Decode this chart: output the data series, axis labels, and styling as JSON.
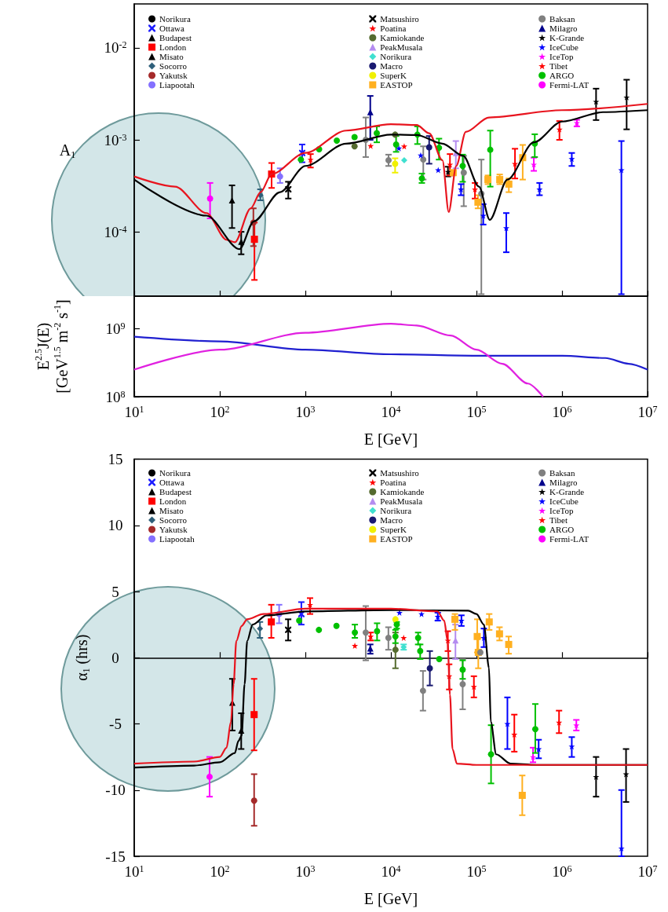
{
  "chart_data": [
    {
      "type": "scatter",
      "ylabel": "A$_{1}$",
      "log": "xy",
      "legend": "top",
      "tick_labels": "y",
      "xlim": [
        10,
        10000000
      ],
      "xticks": [
        {
          "value": 10,
          "label": null
        },
        {
          "value": 100,
          "label": null
        },
        {
          "value": 1000,
          "label": null
        },
        {
          "value": 10000,
          "label": null
        },
        {
          "value": 100000,
          "label": null
        },
        {
          "value": 1000000,
          "label": null
        },
        {
          "value": 10000000,
          "label": null
        }
      ],
      "ylim": [
        2e-05,
        0.03
      ],
      "yticks": [
        {
          "value": 0.0001,
          "label": "10$^{-4}$"
        },
        {
          "value": 0.001,
          "label": "10$^{-3}$"
        },
        {
          "value": 0.01,
          "label": "10$^{-2}$"
        }
      ],
      "series": [
        {
          "name": "Norikura",
          "color": "#000000",
          "marker": "circle"
        },
        {
          "name": "Ottawa",
          "color": "#1a1aff",
          "marker": "cross",
          "x": [
            918
          ],
          "values": [
            0.00072
          ],
          "errors": [
            [
              0.00057,
              0.00089
            ]
          ]
        },
        {
          "name": "Budapest",
          "color": "#000000",
          "marker": "triangle",
          "x": [
            178
          ],
          "values": [
            7.8e-05
          ],
          "errors": [
            [
              5.7e-05,
              0.0001
            ]
          ]
        },
        {
          "name": "London",
          "color": "#ff0000",
          "marker": "square",
          "x": [
            254,
            403
          ],
          "values": [
            8.3e-05,
            0.000425
          ],
          "errors": [
            [
              3e-05,
              0.000126
            ],
            [
              0.0003,
              0.00056
            ]
          ]
        },
        {
          "name": "Misato",
          "color": "#000000",
          "marker": "triangle",
          "x": [
            139
          ],
          "values": [
            0.00022
          ],
          "errors": [
            [
              0.00011,
              0.00032
            ]
          ]
        },
        {
          "name": "Socorro",
          "color": "#2e5f7a",
          "marker": "diamond",
          "x": [
            298
          ],
          "values": [
            0.00025
          ],
          "errors": [
            [
              0.00022,
              0.00029
            ]
          ]
        },
        {
          "name": "Yakutsk",
          "color": "#a52a2a",
          "marker": "circle",
          "x": [
            247
          ],
          "values": [
            0.000126
          ],
          "errors": [
            [
              7e-05,
              0.00018
            ]
          ]
        },
        {
          "name": "Liapootah",
          "color": "#8470ff",
          "marker": "circle",
          "x": [
            506
          ],
          "values": [
            0.0004
          ],
          "errors": [
            [
              0.00034,
              0.00049
            ]
          ]
        },
        {
          "name": "Matsushiro",
          "color": "#000000",
          "marker": "cross",
          "x": [
            632
          ],
          "values": [
            0.00029
          ],
          "errors": [
            [
              0.00023,
              0.00035
            ]
          ]
        },
        {
          "name": "Poatina",
          "color": "#ff0000",
          "marker": "star",
          "x": [
            1150,
            5800,
            14300
          ],
          "values": [
            0.00061,
            0.00086,
            0.00085
          ],
          "errors": [
            [
              0.0005,
              0.0007
            ],
            null,
            null
          ]
        },
        {
          "name": "Kamiokande",
          "color": "#556b2f",
          "marker": "circle",
          "x": [
            3760,
            11200
          ],
          "values": [
            0.00085,
            0.00114
          ]
        },
        {
          "name": "PeakMusala",
          "color": "#b48cf0",
          "marker": "triangle",
          "x": [
            57400
          ],
          "values": [
            0.00072
          ],
          "errors": [
            [
              0.00049,
              0.00097
            ]
          ]
        },
        {
          "name": "Norikura",
          "color": "#40e0d0",
          "marker": "diamond",
          "x": [
            14300
          ],
          "values": [
            0.0006
          ]
        },
        {
          "name": "Macro",
          "color": "#191970",
          "marker": "circle",
          "x": [
            28000
          ],
          "values": [
            0.00083
          ],
          "errors": [
            [
              0.00055,
              0.0011
            ]
          ]
        },
        {
          "name": "SuperK",
          "color": "#f0f000",
          "marker": "circle",
          "x": [
            11200
          ],
          "values": [
            0.00055
          ],
          "errors": [
            [
              0.00044,
              0.00063
            ]
          ]
        },
        {
          "name": "EASTOP",
          "color": "#ffb020",
          "marker": "square",
          "x": [
            53500,
            104000,
            136000,
            187000,
            239000,
            347000
          ],
          "values": [
            0.00044,
            0.00021,
            0.00037,
            0.00037,
            0.00033,
            0.00064
          ],
          "errors": [
            null,
            [
              0.00018,
              0.00025
            ],
            [
              0.00033,
              0.00041
            ],
            [
              0.00033,
              0.00042
            ],
            [
              0.00027,
              0.00038
            ],
            [
              0.00037,
              0.00088
            ]
          ]
        },
        {
          "name": "Baksan",
          "color": "#808080",
          "marker": "circle",
          "x": [
            5080,
            9380,
            23900,
            71000,
            114000
          ],
          "values": [
            0.001,
            0.0006,
            0.00061,
            0.00044,
            0.00026
          ],
          "errors": [
            [
              0.00065,
              0.00175
            ],
            [
              0.00052,
              0.00069
            ],
            [
              0.00037,
              0.00085
            ],
            [
              0.00019,
              0.00067
            ],
            [
              2.1e-05,
              0.00061
            ]
          ]
        },
        {
          "name": "Milagro",
          "color": "#00008b",
          "marker": "triangle",
          "x": [
            5740
          ],
          "values": [
            0.002
          ],
          "errors": [
            [
              0.001,
              0.003
            ]
          ]
        },
        {
          "name": "K-Grande",
          "color": "#000000",
          "marker": "star",
          "x": [
            46400,
            2500000,
            5690000
          ],
          "values": [
            0.00045,
            0.0026,
            0.0029
          ],
          "errors": [
            [
              0.0004,
              0.00051
            ],
            [
              0.00164,
              0.0036
            ],
            [
              0.0013,
              0.0045
            ]
          ]
        },
        {
          "name": "IceCube",
          "color": "#0000ff",
          "marker": "star",
          "x": [
            12400,
            22300,
            35700,
            66000,
            120000,
            223000,
            546000,
            1300000,
            4940000
          ],
          "values": [
            0.00081,
            0.00068,
            0.00047,
            0.00029,
            0.00015,
            0.00011,
            0.00029,
            0.00062,
            0.00047
          ],
          "errors": [
            null,
            null,
            null,
            [
              0.00025,
              0.00033
            ],
            [
              0.00012,
              0.0002
            ],
            [
              6e-05,
              0.00016
            ],
            [
              0.00025,
              0.00034
            ],
            [
              0.00052,
              0.00072
            ],
            [
              2.1e-05,
              0.00097
            ]
          ]
        },
        {
          "name": "IceTop",
          "color": "#ff00ff",
          "marker": "star",
          "x": [
            468000,
            1490000
          ],
          "values": [
            0.00054,
            0.00153
          ],
          "errors": [
            [
              0.00046,
              0.00064
            ],
            [
              0.0014,
              0.00165
            ]
          ]
        },
        {
          "name": "Tibet",
          "color": "#ff0000",
          "marker": "star",
          "x": [
            49000,
            96000,
            282000,
            933000
          ],
          "values": [
            0.00054,
            0.00029,
            0.00055,
            0.0013
          ],
          "errors": [
            [
              0.00041,
              0.0007
            ],
            [
              0.00023,
              0.00034
            ],
            [
              0.00038,
              0.0008
            ],
            [
              0.001,
              0.0016
            ]
          ]
        },
        {
          "name": "ARGO",
          "color": "#00c000",
          "marker": "circle",
          "x": [
            887,
            1450,
            2330,
            3760,
            6840,
            11500,
            20400,
            23000,
            36500,
            69000,
            145000,
            480000
          ],
          "values": [
            0.00061,
            0.00079,
            0.00098,
            0.00107,
            0.00118,
            0.00089,
            0.00114,
            0.00038,
            0.00082,
            0.00052,
            0.00078,
            0.00091
          ],
          "errors": [
            null,
            null,
            null,
            null,
            [
              0.00094,
              0.0014
            ],
            [
              0.00074,
              0.0011
            ],
            [
              0.0009,
              0.0014
            ],
            [
              0.00034,
              0.00043
            ],
            [
              0.00061,
              0.00103
            ],
            [
              0.00035,
              0.00069
            ],
            [
              0.00031,
              0.00126
            ],
            [
              0.00065,
              0.00115
            ]
          ]
        },
        {
          "name": "Fermi-LAT",
          "color": "#ff00ff",
          "marker": "circle",
          "x": [
            77
          ],
          "values": [
            0.00023
          ],
          "errors": [
            [
              0.00014,
              0.00034
            ]
          ]
        },
        {
          "type": "line",
          "color": "#e8141e",
          "x": [
            10,
            30,
            70,
            120,
            150,
            230,
            300,
            403,
            1000,
            3000,
            10000,
            20000,
            28000,
            40000,
            47400,
            58000,
            75000,
            140000,
            1000000,
            10000000
          ],
          "values": [
            0.0004,
            0.00031,
            0.00016,
            8.2e-05,
            7.7e-05,
            0.00018,
            0.00027,
            0.000425,
            0.00072,
            0.00126,
            0.00148,
            0.00145,
            0.00118,
            0.0006,
            0.000164,
            0.00052,
            0.00122,
            0.00175,
            0.0021,
            0.00246
          ]
        },
        {
          "type": "line",
          "color": "#000000",
          "x": [
            10,
            70,
            170,
            250,
            506,
            1000,
            3000,
            10000,
            20000,
            40000,
            70000,
            107000,
            143000,
            230000,
            468000,
            1000000,
            3000000,
            10000000
          ],
          "values": [
            0.00037,
            0.00015,
            6.5e-05,
            0.00013,
            0.00027,
            0.00052,
            0.00091,
            0.00114,
            0.00113,
            0.00091,
            0.00067,
            0.00031,
            0.000135,
            0.00037,
            0.00094,
            0.00158,
            0.002,
            0.0021
          ]
        }
      ]
    },
    {
      "type": "line",
      "ylabel": "E$^{2.5}$J(E)\n[GeV$^{1.5}$ m$^{-2}$ s$^{-1}$]",
      "xlabel": "E [GeV]",
      "log": "xy",
      "xlim": [
        10,
        10000000
      ],
      "xticks": [
        {
          "value": 10,
          "label": "10$^{1}$"
        },
        {
          "value": 100,
          "label": "10$^{2}$"
        },
        {
          "value": 1000,
          "label": "10$^{3}$"
        },
        {
          "value": 10000,
          "label": "10$^{4}$"
        },
        {
          "value": 100000,
          "label": "10$^{5}$"
        },
        {
          "value": 1000000,
          "label": "10$^{6}$"
        },
        {
          "value": 10000000,
          "label": "10$^{7}$"
        }
      ],
      "ylim": [
        100000000,
        3000000000
      ],
      "yticks": [
        {
          "value": 100000000,
          "label": "10$^{8}$"
        },
        {
          "value": 1000000000,
          "label": "10$^{9}$"
        }
      ],
      "series": [
        {
          "color": "#2020d0",
          "x": [
            10,
            100,
            1000,
            10000,
            100000,
            1000000,
            3200000,
            6000000,
            10000000
          ],
          "values": [
            760000000,
            650000000,
            490000000,
            420000000,
            400000000,
            400000000,
            370000000,
            305000000,
            250000000
          ]
        },
        {
          "color": "#e020e0",
          "x": [
            10,
            100,
            1000,
            10000,
            20000,
            50000,
            100000,
            200000,
            400000,
            600000
          ],
          "values": [
            250000000,
            490000000,
            870000000,
            1180000000,
            1110000000,
            790000000,
            490000000,
            305000000,
            156000000,
            100000000
          ]
        }
      ]
    },
    {
      "type": "scatter",
      "ylabel": "α$_{1}$ (hrs)",
      "xlabel": "E [GeV]",
      "log": "x",
      "legend": "top",
      "xlim": [
        10,
        10000000
      ],
      "xticks": [
        {
          "value": 10,
          "label": "10$^{1}$"
        },
        {
          "value": 100,
          "label": "10$^{2}$"
        },
        {
          "value": 1000,
          "label": "10$^{3}$"
        },
        {
          "value": 10000,
          "label": "10$^{4}$"
        },
        {
          "value": 100000,
          "label": "10$^{5}$"
        },
        {
          "value": 1000000,
          "label": "10$^{6}$"
        },
        {
          "value": 10000000,
          "label": "10$^{7}$"
        }
      ],
      "ylim": [
        -15,
        15
      ],
      "yticks": [
        -15,
        -10,
        -5,
        0,
        5,
        10,
        15
      ],
      "series": [
        {
          "name": "Norikura",
          "color": "#000000",
          "marker": "circle"
        },
        {
          "name": "Ottawa",
          "color": "#1a1aff",
          "marker": "cross",
          "x": [
            898
          ],
          "values": [
            3.3
          ],
          "errors": [
            [
              2.5,
              4.2
            ]
          ]
        },
        {
          "name": "Budapest",
          "color": "#000000",
          "marker": "triangle",
          "x": [
            178
          ],
          "values": [
            -5.5
          ],
          "errors": [
            [
              -6.9,
              -4.2
            ]
          ]
        },
        {
          "name": "London",
          "color": "#ff0000",
          "marker": "square",
          "x": [
            252,
            400
          ],
          "values": [
            -4.3,
            2.7
          ],
          "errors": [
            [
              -7,
              -1.6
            ],
            [
              1.5,
              4
            ]
          ]
        },
        {
          "name": "Misato",
          "color": "#000000",
          "marker": "triangle",
          "x": [
            140
          ],
          "values": [
            -3.4
          ],
          "errors": [
            [
              -5.5,
              -1.6
            ]
          ]
        },
        {
          "name": "Socorro",
          "color": "#2e5f7a",
          "marker": "diamond",
          "x": [
            295
          ],
          "values": [
            2.2
          ],
          "errors": [
            [
              1.5,
              2.7
            ]
          ]
        },
        {
          "name": "Yakutsk",
          "color": "#a52a2a",
          "marker": "circle",
          "x": [
            252
          ],
          "values": [
            -10.8
          ],
          "errors": [
            [
              -12.7,
              -8.8
            ]
          ]
        },
        {
          "name": "Liapootah",
          "color": "#8470ff",
          "marker": "circle",
          "x": [
            494
          ],
          "values": [
            3.3
          ],
          "errors": [
            [
              2.6,
              4
            ]
          ]
        },
        {
          "name": "Matsushiro",
          "color": "#000000",
          "marker": "cross",
          "x": [
            630
          ],
          "values": [
            2.1
          ],
          "errors": [
            [
              1.3,
              2.9
            ]
          ]
        },
        {
          "name": "Poatina",
          "color": "#ff0000",
          "marker": "star",
          "x": [
            1135,
            3790,
            14100
          ],
          "values": [
            4,
            0.9,
            1.5
          ],
          "errors": [
            [
              3.3,
              4.5
            ],
            null,
            null
          ]
        },
        {
          "name": "Kamiokande",
          "color": "#556b2f",
          "marker": "circle",
          "x": [
            11300
          ],
          "values": [
            0.6
          ],
          "errors": [
            [
              -0.8,
              1.9
            ]
          ]
        },
        {
          "name": "PeakMusala",
          "color": "#b48cf0",
          "marker": "triangle",
          "x": [
            56800
          ],
          "values": [
            1.3
          ],
          "errors": [
            [
              -0.1,
              2.5
            ]
          ]
        },
        {
          "name": "Norikura",
          "color": "#40e0d0",
          "marker": "diamond",
          "x": [
            14100
          ],
          "values": [
            0.8
          ],
          "errors": [
            [
              0.6,
              1
            ]
          ]
        },
        {
          "name": "Macro",
          "color": "#191970",
          "marker": "circle",
          "x": [
            28500
          ],
          "values": [
            -0.8
          ],
          "errors": [
            [
              -2.1,
              0.5
            ]
          ]
        },
        {
          "name": "SuperK",
          "color": "#f0f000",
          "marker": "circle",
          "x": [
            11300
          ],
          "values": [
            2.9
          ]
        },
        {
          "name": "EASTOP",
          "color": "#ffb020",
          "marker": "square",
          "x": [
            56000,
            102000,
            105000,
            141000,
            186000,
            238000,
            343000
          ],
          "values": [
            2.9,
            1.6,
            0.4,
            2.7,
            1.8,
            1,
            -10.4
          ],
          "errors": [
            [
              2.1,
              3.3
            ],
            [
              0.4,
              2.9
            ],
            [
              -0.8,
              1.5
            ],
            [
              2.1,
              3.3
            ],
            [
              1.3,
              2.3
            ],
            [
              0.3,
              1.6
            ],
            [
              -11.9,
              -8.9
            ]
          ]
        },
        {
          "name": "Baksan",
          "color": "#808080",
          "marker": "circle",
          "x": [
            5080,
            9350,
            23700,
            69000,
            111000
          ],
          "values": [
            1.9,
            1.5,
            -2.5,
            -2,
            0.4
          ],
          "errors": [
            [
              -0.2,
              3.9
            ],
            [
              0.6,
              2.3
            ],
            [
              -4,
              -1
            ],
            [
              -3.9,
              -0.1
            ],
            null
          ]
        },
        {
          "name": "Milagro",
          "color": "#00008b",
          "marker": "triangle",
          "x": [
            5740
          ],
          "values": [
            0.7
          ],
          "errors": [
            [
              0.3,
              1
            ]
          ]
        },
        {
          "name": "K-Grande",
          "color": "#000000",
          "marker": "star",
          "x": [
            2500000,
            5600000
          ],
          "values": [
            -9,
            -8.8
          ],
          "errors": [
            [
              -10.5,
              -7.5
            ],
            [
              -10.9,
              -6.9
            ]
          ]
        },
        {
          "name": "IceCube",
          "color": "#0000ff",
          "marker": "star",
          "x": [
            12600,
            22800,
            35300,
            66700,
            122000,
            230000,
            533000,
            1300000,
            4950000
          ],
          "values": [
            3.4,
            3.3,
            3.1,
            2.8,
            1.5,
            -5,
            -6.9,
            -6.7,
            -14.4
          ],
          "errors": [
            null,
            null,
            [
              2.8,
              3.4
            ],
            [
              2.4,
              3.2
            ],
            [
              0.8,
              2.2
            ],
            [
              -6.9,
              -3
            ],
            [
              -7.6,
              -6.2
            ],
            [
              -7.5,
              -6
            ],
            [
              -15,
              -10
            ]
          ]
        },
        {
          "name": "IceTop",
          "color": "#ff00ff",
          "marker": "star",
          "x": [
            458000,
            1470000
          ],
          "values": [
            -7.5,
            -5.1
          ],
          "errors": [
            [
              -7.9,
              -6.8
            ],
            [
              -5.5,
              -4.7
            ]
          ]
        },
        {
          "name": "Tibet",
          "color": "#ff0000",
          "marker": "star",
          "x": [
            5800,
            46300,
            48000,
            93300,
            277000,
            923000
          ],
          "values": [
            1.6,
            1.3,
            -1.4,
            -2.2,
            -5.8,
            -4.9
          ],
          "errors": [
            [
              1.3,
              1.9
            ],
            [
              0.5,
              2
            ],
            [
              -2.4,
              -0.5
            ],
            [
              -3,
              -1.4
            ],
            [
              -7.1,
              -4.3
            ],
            [
              -5.7,
              -4
            ]
          ]
        },
        {
          "name": "ARGO",
          "color": "#00c000",
          "marker": "circle",
          "x": [
            847,
            1440,
            2310,
            3790,
            6890,
            11300,
            11700,
            20800,
            22000,
            36700,
            69000,
            148000,
            487000
          ],
          "values": [
            2.8,
            2.1,
            2.4,
            1.9,
            2,
            1.6,
            2.5,
            1.5,
            0.5,
            -0.1,
            -0.9,
            -7.3,
            -5.4
          ],
          "errors": [
            null,
            null,
            null,
            [
              1.5,
              2.5
            ],
            [
              1.3,
              2.6
            ],
            [
              1.1,
              2.1
            ],
            [
              2.2,
              2.7
            ],
            [
              1,
              1.9
            ],
            [
              -0.1,
              1
            ],
            null,
            [
              -1.6,
              -0.2
            ],
            [
              -9.5,
              -5.1
            ],
            [
              -7.2,
              -3.5
            ]
          ]
        },
        {
          "name": "Fermi-LAT",
          "color": "#ff00ff",
          "marker": "circle",
          "x": [
            76
          ],
          "values": [
            -9
          ],
          "errors": [
            [
              -10.5,
              -7.5
            ]
          ]
        },
        {
          "type": "line",
          "color": "#000000",
          "x": [
            10,
            50,
            100,
            150,
            165,
            180,
            195,
            209,
            242,
            350,
            1000,
            10000,
            80000,
            100000,
            122000,
            140000,
            147000,
            170000,
            250000,
            500000,
            10000000
          ],
          "values": [
            -8.3,
            -8.15,
            -7.9,
            -7.2,
            -6.3,
            -5.9,
            -2,
            1.26,
            2.5,
            3.2,
            3.5,
            3.6,
            3.55,
            3.3,
            2.5,
            -0.77,
            -4.85,
            -7.3,
            -8,
            -8.1,
            -8.1
          ]
        },
        {
          "type": "line",
          "color": "#e8141e",
          "x": [
            10,
            50,
            100,
            120,
            135,
            145,
            156,
            180,
            209,
            324,
            1000,
            10000,
            35000,
            42000,
            46000,
            49000,
            52500,
            59000,
            100000,
            10000000
          ],
          "values": [
            -8,
            -7.85,
            -7.5,
            -6.8,
            -4.85,
            -2,
            1.26,
            2.4,
            2.9,
            3.3,
            3.7,
            3.7,
            3.5,
            2.8,
            1.26,
            -2.8,
            -6.9,
            -8,
            -8.1,
            -8.1
          ]
        }
      ]
    }
  ]
}
